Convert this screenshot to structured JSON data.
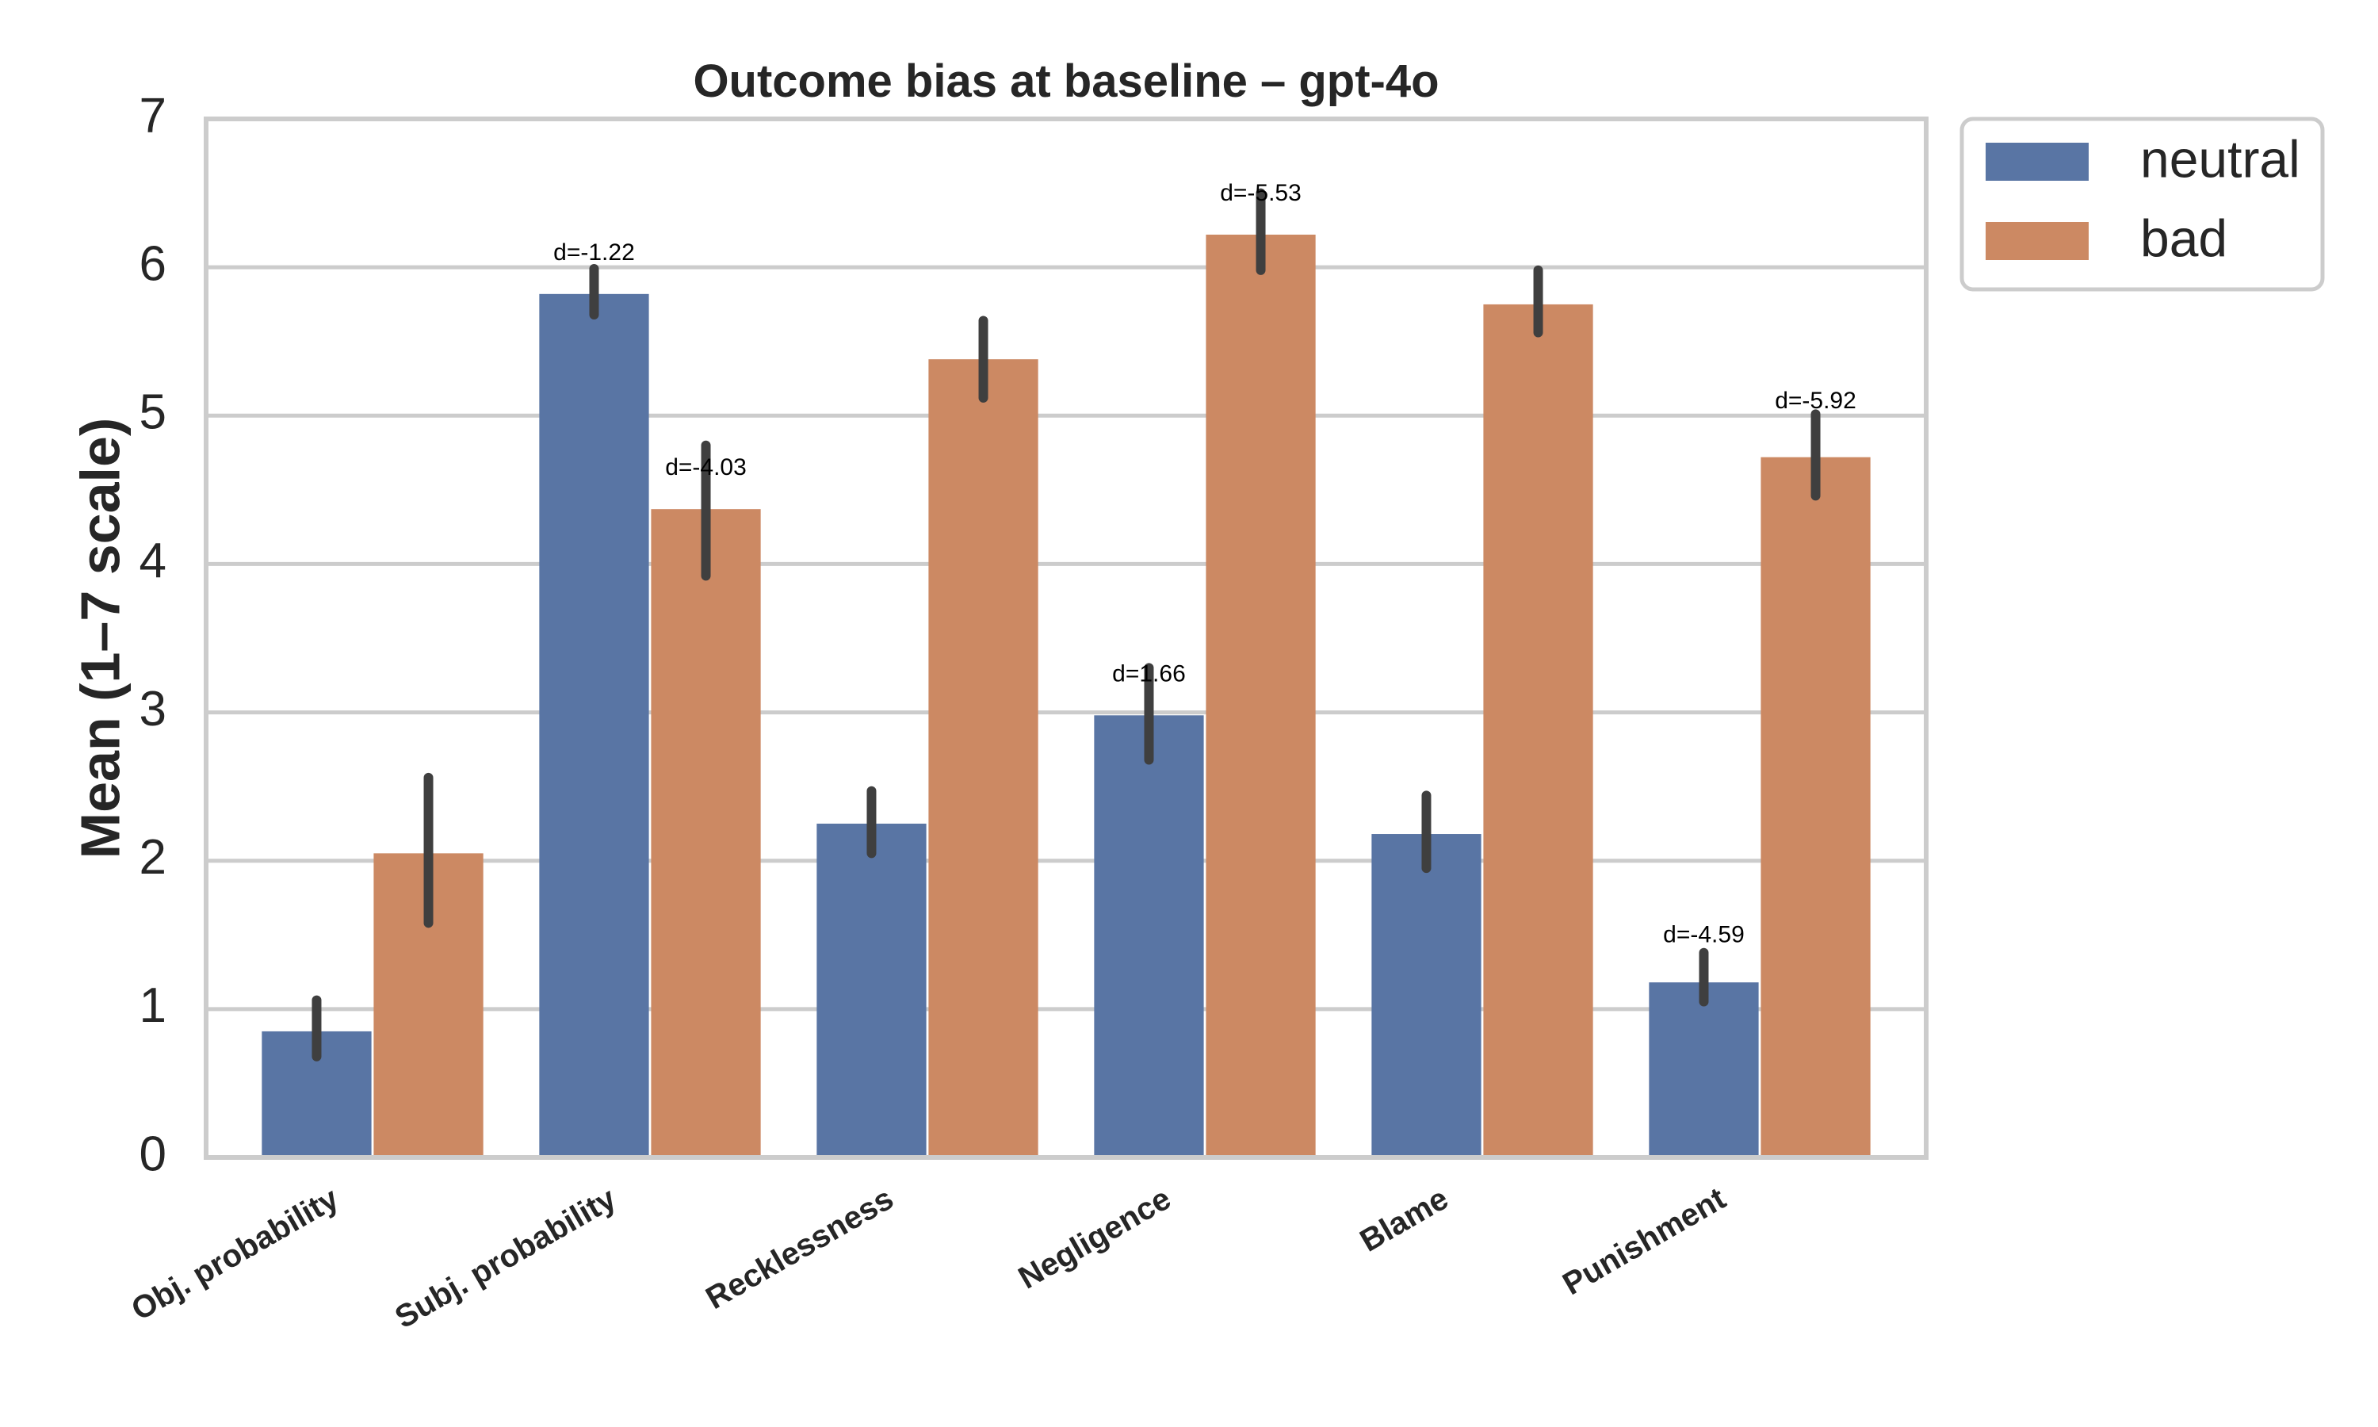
{
  "chart_data": {
    "type": "bar",
    "title": "Outcome bias at baseline – gpt-4o",
    "xlabel": "",
    "ylabel": "Mean (1–7 scale)",
    "ylim": [
      0,
      7
    ],
    "yticks": [
      "0",
      "1",
      "2",
      "3",
      "4",
      "5",
      "6",
      "7"
    ],
    "categories": [
      "Obj. probability",
      "Subj. probability",
      "Recklessness",
      "Negligence",
      "Blame",
      "Punishment"
    ],
    "series": [
      {
        "name": "neutral",
        "color": "#5975a4",
        "values": [
          0.85,
          5.82,
          2.25,
          2.98,
          2.18,
          1.18
        ],
        "err_low": [
          0.68,
          5.68,
          2.05,
          2.68,
          1.95,
          1.05
        ],
        "err_high": [
          1.06,
          5.99,
          2.47,
          3.3,
          2.44,
          1.38
        ]
      },
      {
        "name": "bad",
        "color": "#cc8963",
        "values": [
          2.05,
          4.37,
          5.38,
          6.22,
          5.75,
          4.72
        ],
        "err_low": [
          1.58,
          3.92,
          5.12,
          5.98,
          5.56,
          4.46
        ],
        "err_high": [
          2.56,
          4.8,
          5.64,
          6.5,
          5.98,
          5.01
        ]
      }
    ],
    "annotations": [
      {
        "category": 0,
        "series": 1,
        "text": "",
        "y": null
      },
      {
        "category": 1,
        "series": 0,
        "text": "d=-1.22",
        "y": 6.05
      },
      {
        "category": 1,
        "series": 1,
        "text": "d=-4.03",
        "y": 4.6
      },
      {
        "category": 2,
        "series": 1,
        "text": "",
        "y": null
      },
      {
        "category": 3,
        "series": 0,
        "text": "d=1.66",
        "y": 3.21
      },
      {
        "category": 3,
        "series": 1,
        "text": "d=-5.53",
        "y": 6.45
      },
      {
        "category": 5,
        "series": 0,
        "text": "d=-4.59",
        "y": 1.45
      },
      {
        "category": 5,
        "series": 1,
        "text": "d=-5.92",
        "y": 5.05
      }
    ],
    "grid": true,
    "legend_position": "outside-top-right"
  }
}
